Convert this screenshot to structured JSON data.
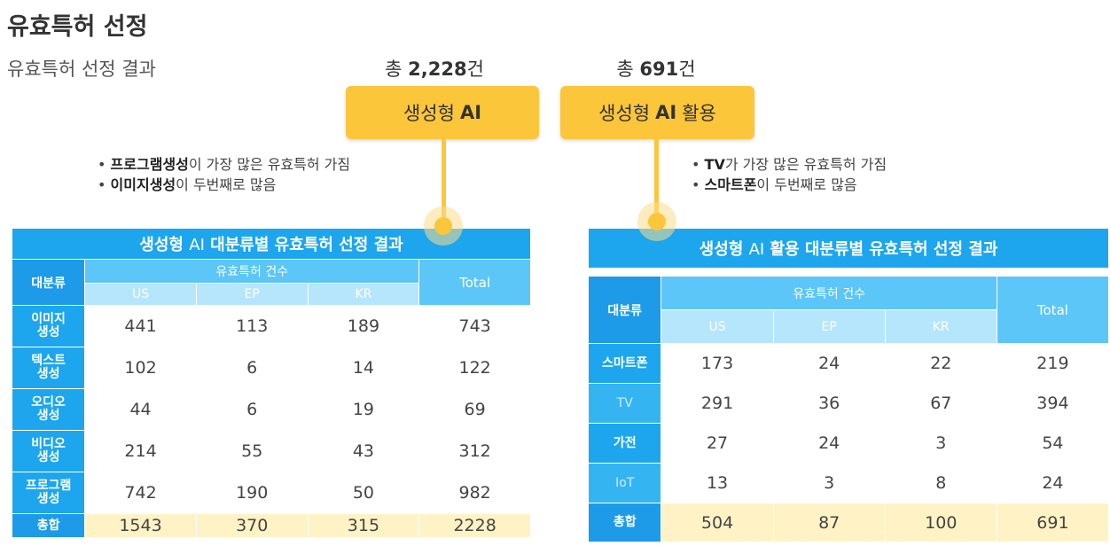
{
  "header": {
    "title": "유효특허 선정",
    "subtitle": "유효특허 선정 결과"
  },
  "panels": [
    {
      "total": {
        "prefix": "총",
        "value": "2,228",
        "suffix": "건"
      },
      "label": {
        "main": "생성형",
        "bold": "AI",
        "rest": ""
      },
      "bullets": [
        {
          "bold": "프로그램생성",
          "text": "이 가장 많은 유효특허 가짐"
        },
        {
          "bold": "이미지생성",
          "text": "이 두번째로 많음"
        }
      ],
      "table": {
        "title": {
          "pre": "생성형",
          "light": "AI",
          "post": "대분류별 유효특허 선정 결과"
        },
        "category_header": "대분류",
        "count_header": "유효특허 건수",
        "columns": [
          "US",
          "EP",
          "KR"
        ],
        "total_header": "Total",
        "rows": [
          {
            "label": "이미지\n생성",
            "cells": [
              441,
              113,
              189,
              743
            ]
          },
          {
            "label": "텍스트\n생성",
            "cells": [
              102,
              6,
              14,
              122
            ]
          },
          {
            "label": "오디오\n생성",
            "cells": [
              44,
              6,
              19,
              69
            ]
          },
          {
            "label": "비디오\n생성",
            "cells": [
              214,
              55,
              43,
              312
            ]
          },
          {
            "label": "프로그램\n생성",
            "cells": [
              742,
              190,
              50,
              982
            ]
          }
        ],
        "sum_row": {
          "label": "총합",
          "cells": [
            1543,
            370,
            315,
            2228
          ]
        }
      }
    },
    {
      "total": {
        "prefix": "총",
        "value": "691",
        "suffix": "건"
      },
      "label": {
        "main": "생성형",
        "bold": "AI",
        "rest": "활용"
      },
      "bullets": [
        {
          "bold": "TV",
          "text": "가 가장 많은 유효특허 가짐"
        },
        {
          "bold": "스마트폰",
          "text": "이 두번째로 많음"
        }
      ],
      "table": {
        "title": {
          "pre": "생성형",
          "light": "AI",
          "post": "활용 대분류별 유효특허 선정 결과"
        },
        "category_header": "대분류",
        "count_header": "유효특허 건수",
        "columns": [
          "US",
          "EP",
          "KR"
        ],
        "total_header": "Total",
        "rows": [
          {
            "label": "스마트폰",
            "cells": [
              173,
              24,
              22,
              219
            ]
          },
          {
            "label": "TV",
            "cells": [
              291,
              36,
              67,
              394
            ]
          },
          {
            "label": "가전",
            "cells": [
              27,
              24,
              3,
              54
            ]
          },
          {
            "label": "IoT",
            "cells": [
              13,
              3,
              8,
              24
            ]
          }
        ],
        "sum_row": {
          "label": "총합",
          "cells": [
            504,
            87,
            100,
            691
          ]
        }
      }
    }
  ]
}
